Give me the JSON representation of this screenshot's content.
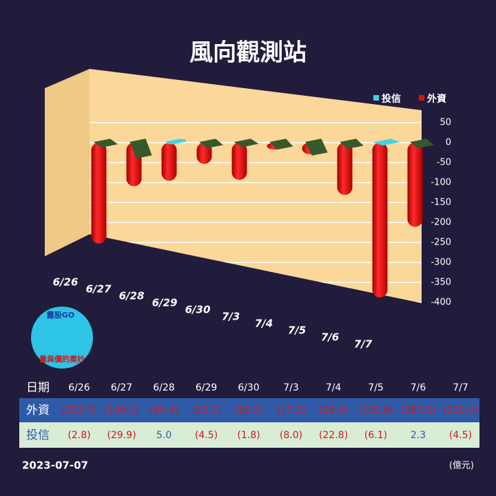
{
  "chart_data": {
    "type": "bar",
    "title": "風向觀測站",
    "categories": [
      "6/26",
      "6/27",
      "6/28",
      "6/29",
      "6/30",
      "7/3",
      "7/4",
      "7/5",
      "7/6",
      "7/7"
    ],
    "series": [
      {
        "name": "外資",
        "color": "#e01010",
        "values": [
          -252.7,
          -109.3,
          -95.4,
          -53.2,
          -93.3,
          -17.3,
          -29.2,
          -130.9,
          -387.5,
          -210.7
        ],
        "value_labels": [
          "(252.7)",
          "(109.3)",
          "(95.4)",
          "(53.2)",
          "(93.3)",
          "(17.3)",
          "(29.2)",
          "(130.9)",
          "(387.5)",
          "(210.7)"
        ]
      },
      {
        "name": "投信",
        "color": "#35592c",
        "positive_color": "#3fd3e6",
        "values": [
          -2.8,
          -29.9,
          5.0,
          -4.5,
          -1.8,
          -8.0,
          -22.8,
          -6.1,
          2.3,
          -4.5
        ],
        "value_labels": [
          "(2.8)",
          "(29.9)",
          "5.0",
          "(4.5)",
          "(1.8)",
          "(8.0)",
          "(22.8)",
          "(6.1)",
          "2.3",
          "(4.5)"
        ]
      }
    ],
    "ylim": [
      -400,
      100
    ],
    "yticks": [
      50,
      0,
      -50,
      -100,
      -150,
      -200,
      -250,
      -300,
      -350,
      -400
    ],
    "grid": true,
    "legend": "top-right",
    "table_header": "日期",
    "date": "2023-07-07",
    "unit": "(億元)",
    "logo": {
      "name": "露股GO",
      "slogan": "量與價的奧妙"
    }
  }
}
